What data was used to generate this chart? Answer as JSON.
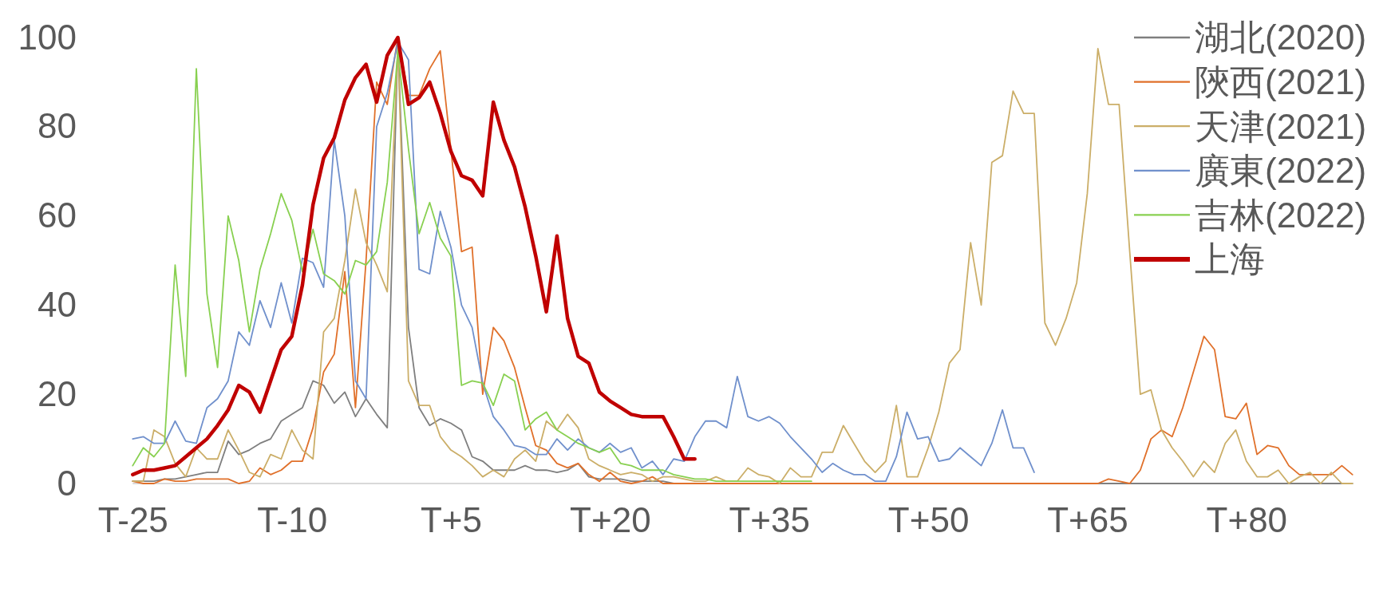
{
  "chart_data": {
    "type": "line",
    "legend": "top right",
    "categories": [
      "T-25",
      null,
      null,
      null,
      null,
      null,
      null,
      null,
      null,
      null,
      null,
      null,
      null,
      null,
      null,
      "T-10",
      null,
      null,
      null,
      null,
      null,
      null,
      null,
      null,
      null,
      null,
      null,
      null,
      null,
      null,
      "T+5",
      null,
      null,
      null,
      null,
      null,
      null,
      null,
      null,
      null,
      null,
      null,
      null,
      null,
      null,
      "T+20",
      null,
      null,
      null,
      null,
      null,
      null,
      null,
      null,
      null,
      null,
      null,
      null,
      null,
      null,
      "T+35",
      null,
      null,
      null,
      null,
      null,
      null,
      null,
      null,
      null,
      null,
      null,
      null,
      null,
      null,
      "T+50",
      null,
      null,
      null,
      null,
      null,
      null,
      null,
      null,
      null,
      null,
      null,
      null,
      null,
      null,
      "T+65",
      null,
      null,
      null,
      null,
      null,
      null,
      null,
      null,
      null,
      null,
      null,
      null,
      null,
      null,
      "T+80",
      null,
      null,
      null,
      null,
      null,
      null,
      null,
      null,
      null,
      null
    ],
    "ylim": [
      0,
      100
    ],
    "yticks": [
      0,
      20,
      40,
      60,
      80,
      100
    ],
    "series": [
      {
        "name": "湖北(2020)",
        "color": "#7f7f7f",
        "values": [
          0.5,
          0.5,
          0.5,
          1,
          1,
          1.5,
          2,
          2.5,
          2.5,
          9.5,
          6.5,
          7.5,
          9,
          10,
          14,
          15.5,
          17,
          23,
          22,
          18,
          20.5,
          15,
          19,
          15.5,
          12.5,
          99,
          35,
          17,
          13,
          14.5,
          13.5,
          12,
          6,
          5,
          3,
          3,
          3,
          4,
          3,
          3,
          2.5,
          3,
          4.5,
          1.5,
          1,
          1,
          1,
          0.5,
          0.5,
          0.5,
          0.5,
          0,
          0,
          0,
          0,
          0,
          0,
          0,
          0,
          0,
          0,
          0,
          0,
          0,
          0,
          0,
          0,
          0,
          0,
          0,
          0,
          0,
          0,
          0,
          0,
          0,
          0,
          0,
          0,
          0,
          0,
          0,
          0,
          0,
          0,
          0,
          0,
          0,
          0,
          0,
          0,
          0,
          0,
          0,
          0,
          0,
          0,
          0,
          0,
          0,
          0,
          0,
          0,
          0,
          0,
          0,
          0,
          0,
          0,
          0,
          0,
          0,
          0,
          0,
          0,
          0
        ]
      },
      {
        "name": "陝西(2021)",
        "color": "#e0702a",
        "values": [
          0.5,
          0,
          0,
          1,
          0.5,
          0.5,
          1,
          1,
          1,
          1,
          0,
          0.5,
          3.5,
          2,
          3,
          5,
          5,
          12.5,
          25,
          29,
          47.5,
          17,
          50,
          90,
          85,
          100,
          87,
          87,
          93,
          97,
          75,
          52,
          53,
          20,
          35,
          32,
          26,
          17,
          8.5,
          7.5,
          4.5,
          3.5,
          4.5,
          2,
          0.5,
          2.5,
          0.5,
          0,
          0.5,
          1.5,
          0,
          0,
          0,
          0,
          0,
          0,
          0,
          0,
          0,
          0,
          0,
          0,
          0,
          0,
          0,
          0,
          0,
          0,
          0,
          0,
          0,
          0,
          0,
          0,
          0,
          0,
          0,
          0,
          0,
          0,
          0,
          0,
          0,
          0,
          0,
          0,
          0,
          0,
          0,
          0,
          0,
          0,
          1,
          0.5,
          0,
          3,
          10,
          12,
          10.5,
          17,
          25,
          33,
          30,
          15,
          14.5,
          18,
          6.5,
          8.5,
          8,
          4,
          2,
          2,
          2,
          2,
          4,
          2
        ]
      },
      {
        "name": "天津(2021)",
        "color": "#cbae68",
        "values": [
          0.5,
          0.5,
          12,
          10.5,
          4.5,
          1.5,
          8,
          5.5,
          5.5,
          12,
          7.5,
          2.5,
          1.5,
          6.5,
          5.5,
          12,
          7.5,
          5.5,
          34,
          37,
          50,
          66,
          54,
          49,
          43,
          98,
          23,
          17.5,
          17.5,
          10.5,
          7.5,
          6,
          4,
          1.5,
          3,
          1.5,
          5.5,
          7.5,
          5,
          14,
          12,
          15.5,
          12.5,
          5.5,
          4,
          3,
          2,
          2.5,
          2,
          0.5,
          1.5,
          1.5,
          1,
          0.5,
          0.5,
          1.5,
          0.5,
          0.5,
          3.5,
          2,
          1.5,
          0,
          3.5,
          1.5,
          1.5,
          7,
          7,
          13,
          9,
          5,
          2.5,
          5,
          17.5,
          1.5,
          1.5,
          8,
          16,
          27,
          30,
          54,
          40,
          72,
          73.5,
          88,
          83,
          83,
          36,
          31,
          37,
          45,
          65,
          97.5,
          85,
          85,
          52,
          20,
          21,
          12,
          8,
          5,
          1.5,
          5,
          2.5,
          9,
          12,
          5,
          1.5,
          1.5,
          3,
          0,
          1.5,
          2.5,
          0,
          2.5,
          0,
          0
        ]
      },
      {
        "name": "廣東(2022)",
        "color": "#7090cc",
        "values": [
          10,
          10.5,
          9,
          9,
          14,
          9.5,
          9,
          17,
          19,
          23,
          34,
          31,
          41,
          35,
          45,
          36,
          50.5,
          49.5,
          44,
          77,
          60,
          23,
          19,
          80,
          87.5,
          99,
          95,
          48,
          47,
          61,
          53,
          40,
          35,
          22.5,
          15,
          12,
          8.5,
          8,
          6.5,
          6.5,
          10,
          7.5,
          10,
          8,
          7,
          9,
          7,
          8,
          3.5,
          5,
          2,
          5.5,
          5,
          10.5,
          14,
          14,
          12.5,
          24,
          15,
          14,
          15,
          13.5,
          10.5,
          8,
          5.5,
          2.5,
          4.5,
          3,
          2,
          2,
          0.5,
          0.5,
          6,
          16,
          10,
          10.5,
          5,
          5.5,
          8,
          6,
          4,
          9,
          16.5,
          8,
          8,
          2.5,
          null,
          null,
          null,
          null,
          null,
          null,
          null,
          null,
          null,
          null,
          null,
          null,
          null,
          null,
          null,
          null,
          null,
          null,
          null,
          null,
          null,
          null,
          null,
          null,
          null,
          null,
          null,
          null,
          null,
          null
        ]
      },
      {
        "name": "吉林(2022)",
        "color": "#88d050",
        "values": [
          4,
          8,
          6,
          9,
          49,
          24,
          93,
          42.5,
          26,
          60,
          50,
          34,
          48,
          56,
          65,
          59,
          47.5,
          57,
          47,
          45.5,
          42.5,
          50,
          49,
          52,
          67.5,
          97,
          75,
          56,
          63,
          55,
          51,
          22,
          23,
          22.5,
          17.5,
          24.5,
          23,
          12,
          14.5,
          16,
          12,
          10.5,
          9,
          8,
          7,
          8,
          4.5,
          4,
          3,
          3,
          3,
          2,
          1.5,
          1,
          1,
          0.5,
          0.5,
          0.5,
          0.5,
          0.5,
          0.5,
          0.5,
          0.5,
          0.5,
          0.5,
          null,
          null,
          null,
          null,
          null,
          null,
          null,
          null,
          null,
          null,
          null,
          null,
          null,
          null,
          null,
          null,
          null,
          null,
          null,
          null,
          null,
          null,
          null,
          null,
          null,
          null,
          null,
          null,
          null,
          null,
          null,
          null,
          null,
          null,
          null,
          null,
          null,
          null,
          null,
          null,
          null,
          null,
          null,
          null,
          null,
          null,
          null,
          null,
          null,
          null,
          null
        ]
      },
      {
        "name": "上海",
        "color": "#c00000",
        "values": [
          2,
          3,
          3,
          3.5,
          4,
          6,
          8,
          10,
          13,
          16.5,
          22,
          20.5,
          16,
          23,
          30,
          33,
          44.5,
          62.5,
          73,
          77.5,
          86,
          91,
          94,
          85.5,
          96,
          100,
          85,
          86.5,
          90,
          83,
          74.5,
          69,
          68,
          64.5,
          85.5,
          77,
          71,
          62,
          51,
          38.5,
          55.5,
          37,
          28.5,
          27,
          20.5,
          18.5,
          17,
          15.5,
          15,
          15,
          15,
          10.5,
          5.5,
          5.5,
          null,
          null,
          null,
          null,
          null,
          null,
          null,
          null,
          null,
          null,
          null,
          null,
          null,
          null,
          null,
          null,
          null,
          null,
          null,
          null,
          null,
          null,
          null,
          null,
          null,
          null,
          null,
          null,
          null,
          null,
          null,
          null,
          null,
          null,
          null,
          null,
          null,
          null,
          null,
          null,
          null,
          null,
          null,
          null,
          null,
          null,
          null,
          null,
          null,
          null,
          null,
          null,
          null,
          null,
          null,
          null,
          null,
          null,
          null,
          null,
          null,
          null
        ]
      }
    ]
  }
}
